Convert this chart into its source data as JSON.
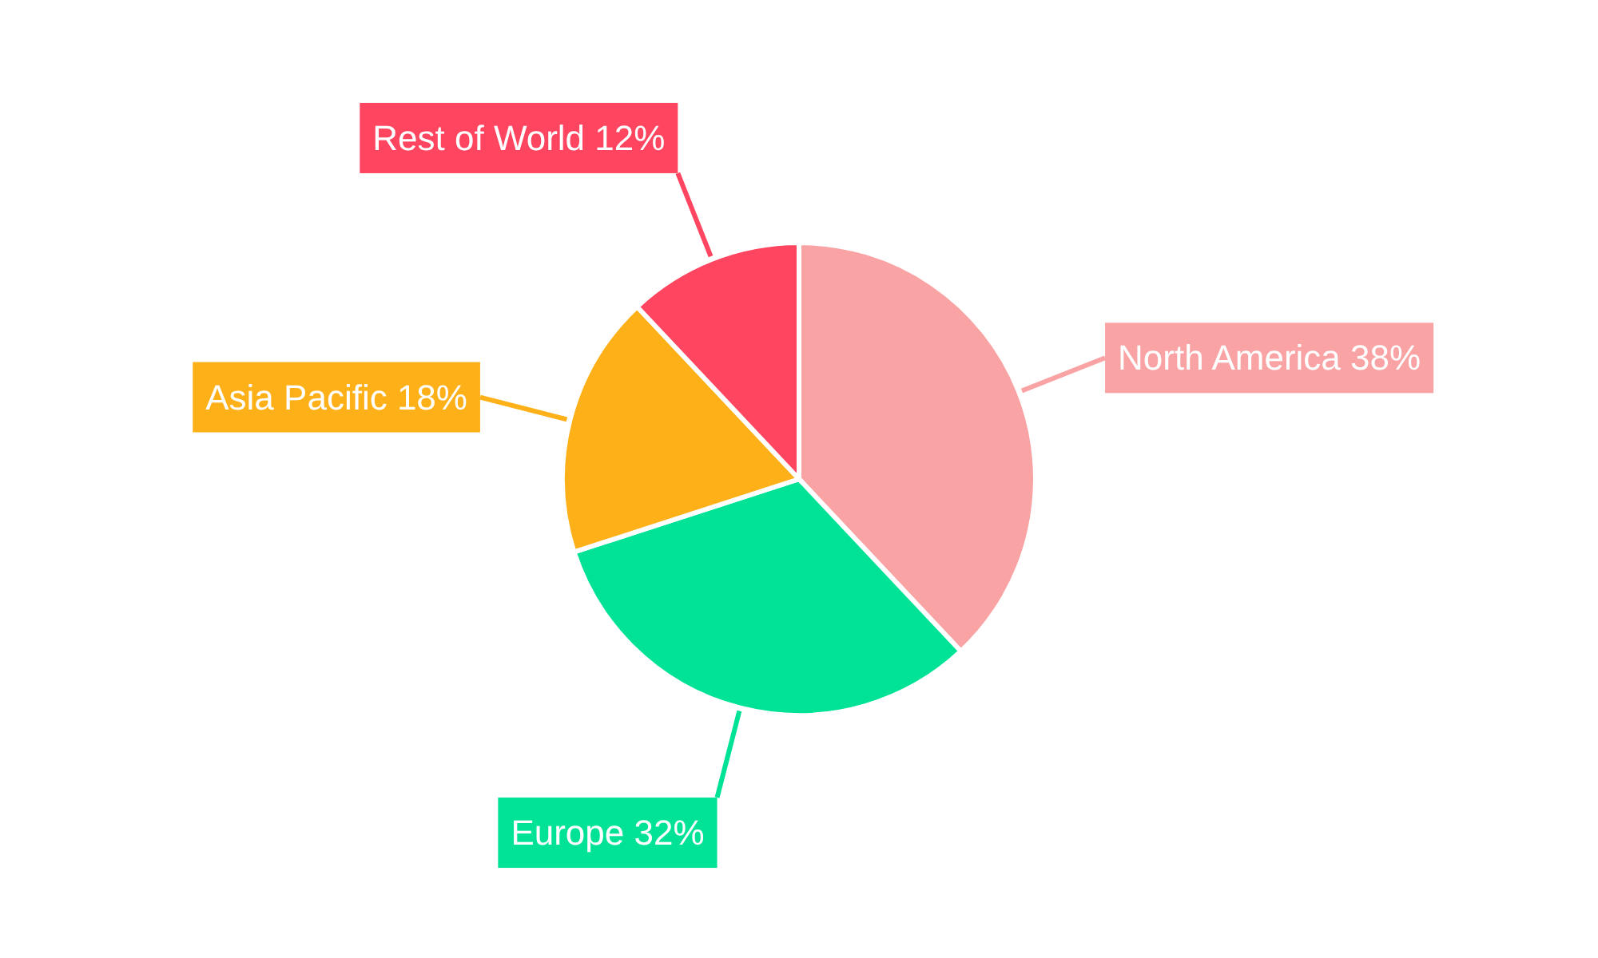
{
  "chart_data": {
    "type": "pie",
    "categories": [
      "North America",
      "Europe",
      "Asia Pacific",
      "Rest of World"
    ],
    "values": [
      38,
      32,
      18,
      12
    ],
    "colors": [
      "#f9a3a4",
      "#00e396",
      "#feb019",
      "#ff4560"
    ],
    "value_labels": [
      "38%",
      "32%",
      "18%",
      "12%"
    ],
    "legend": false
  }
}
